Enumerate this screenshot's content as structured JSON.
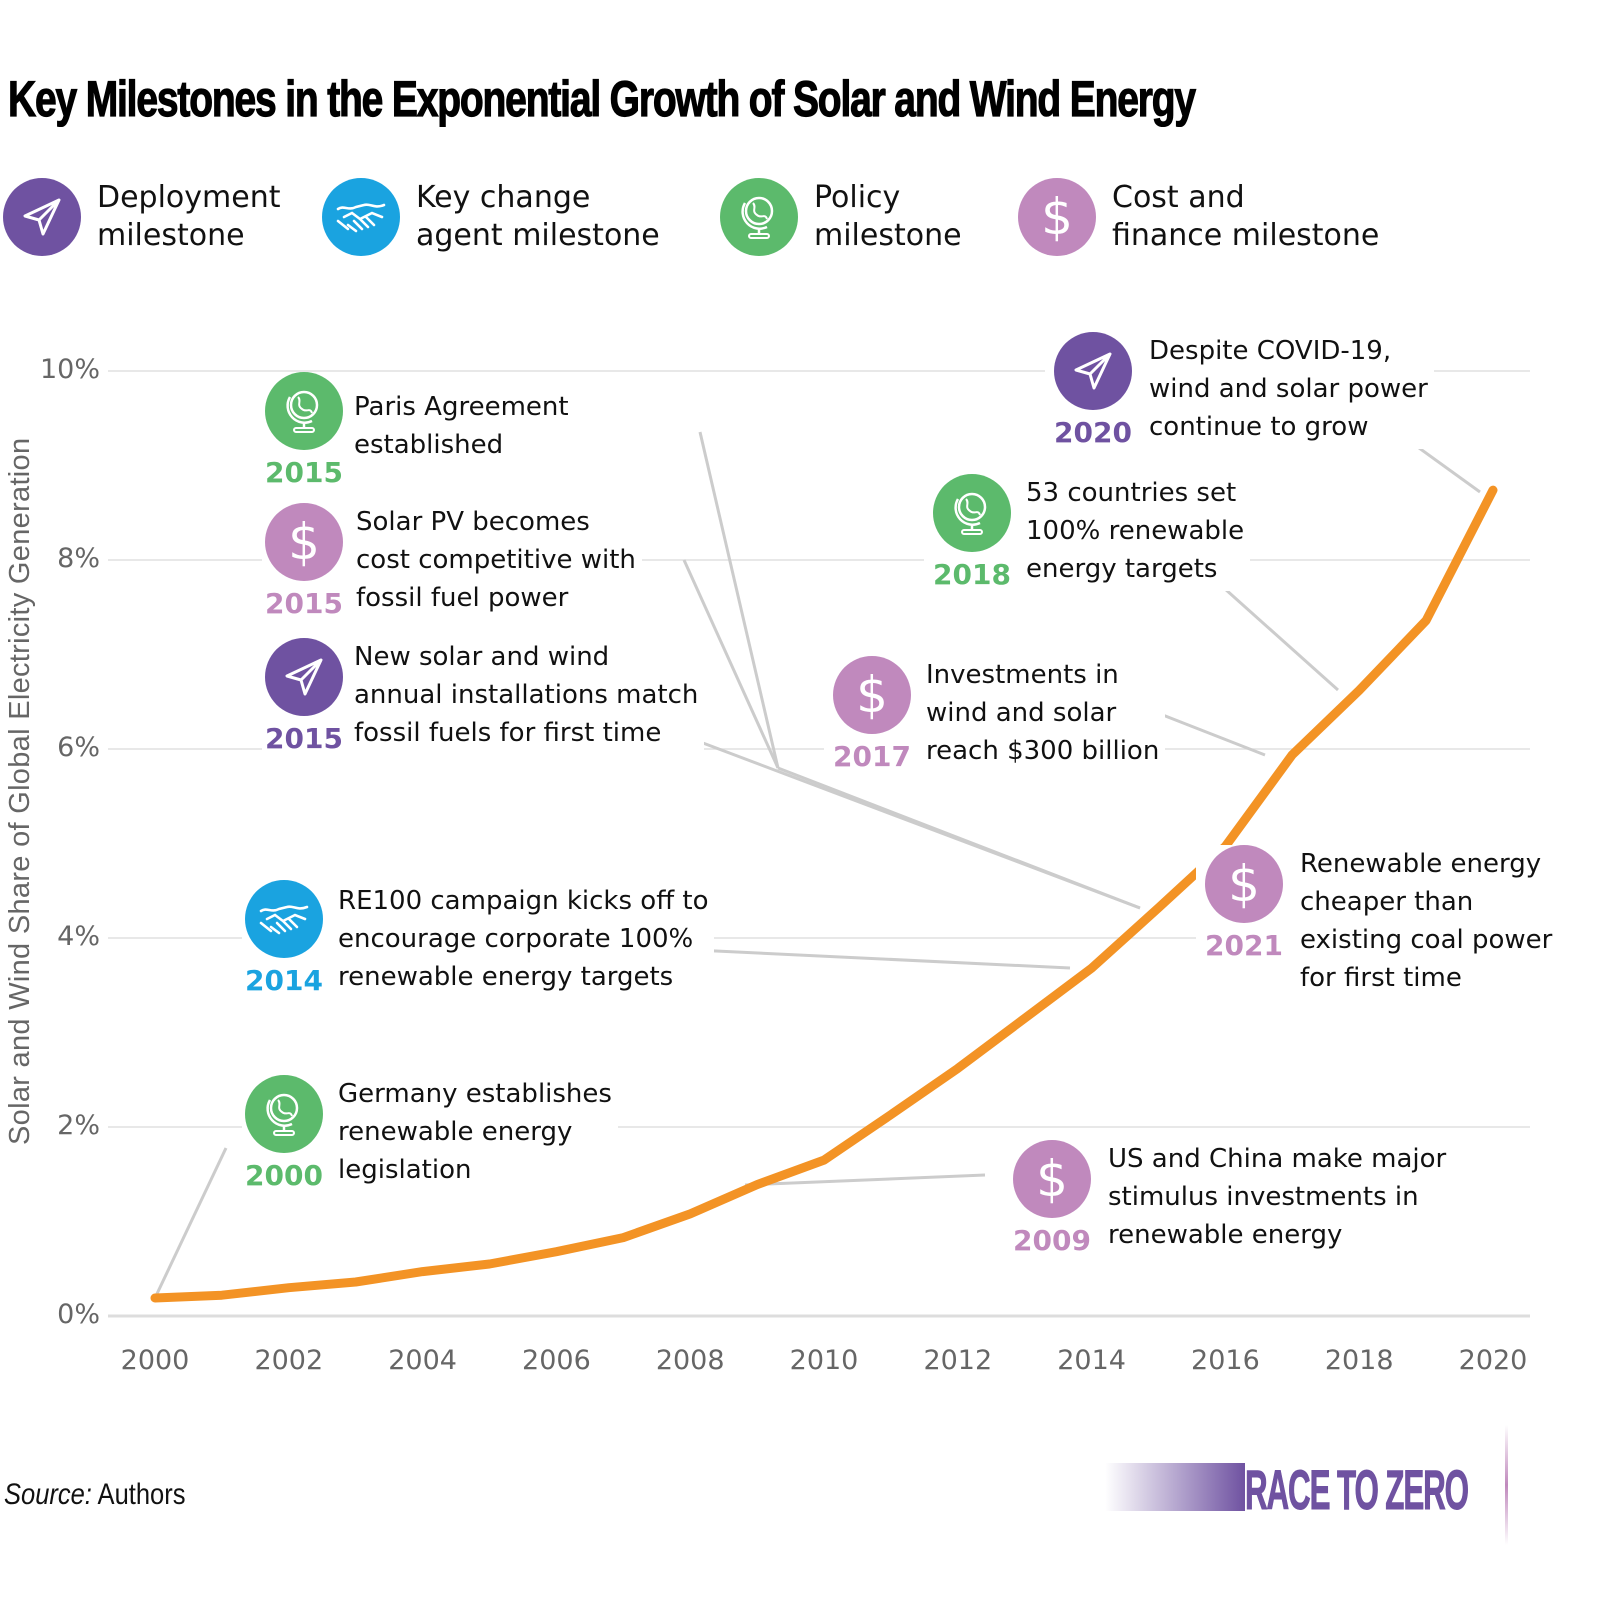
{
  "title": "Key Milestones in the Exponential Growth of Solar and Wind Energy",
  "colors": {
    "deployment": "#6f52a1",
    "key_change_agent": "#1aa3e0",
    "policy": "#5cba6c",
    "cost_finance": "#c089bd",
    "line": "#f39325",
    "grid": "#e0e0e0",
    "leader": "#cccccc",
    "axis_text": "#666666"
  },
  "legend": [
    {
      "type": "deployment",
      "icon": "paper-plane-icon",
      "line1": "Deployment",
      "line2": "milestone"
    },
    {
      "type": "key_change_agent",
      "icon": "handshake-icon",
      "line1": "Key change",
      "line2": "agent milestone"
    },
    {
      "type": "policy",
      "icon": "globe-icon",
      "line1": "Policy",
      "line2": "milestone"
    },
    {
      "type": "cost_finance",
      "icon": "dollar-icon",
      "line1": "Cost and",
      "line2": "finance milestone"
    }
  ],
  "annotations": [
    {
      "year": "2015",
      "type": "policy",
      "icon": "globe-icon",
      "text": "Paris Agreement\nestablished"
    },
    {
      "year": "2015",
      "type": "cost_finance",
      "icon": "dollar-icon",
      "text": "Solar PV becomes\ncost competitive with\nfossil fuel power"
    },
    {
      "year": "2015",
      "type": "deployment",
      "icon": "paper-plane-icon",
      "text": "New solar and wind\nannual installations match\nfossil fuels for first time"
    },
    {
      "year": "2014",
      "type": "key_change_agent",
      "icon": "handshake-icon",
      "text": "RE100 campaign kicks off to\nencourage corporate 100%\nrenewable energy targets"
    },
    {
      "year": "2000",
      "type": "policy",
      "icon": "globe-icon",
      "text": "Germany establishes\nrenewable energy\nlegislation"
    },
    {
      "year": "2020",
      "type": "deployment",
      "icon": "paper-plane-icon",
      "text": "Despite COVID-19,\nwind and solar power\ncontinue to grow"
    },
    {
      "year": "2018",
      "type": "policy",
      "icon": "globe-icon",
      "text": "53 countries set\n100% renewable\nenergy targets"
    },
    {
      "year": "2017",
      "type": "cost_finance",
      "icon": "dollar-icon",
      "text": "Investments in\nwind and solar\nreach $300 billion"
    },
    {
      "year": "2021",
      "type": "cost_finance",
      "icon": "dollar-icon",
      "text": "Renewable energy\ncheaper than\nexisting coal power\nfor first time"
    },
    {
      "year": "2009",
      "type": "cost_finance",
      "icon": "dollar-icon",
      "text": "US and China make major\nstimulus investments in\nrenewable energy"
    }
  ],
  "source_label": "Source:",
  "source_value": " Authors",
  "brand": "RACE TO ZERO",
  "chart_data": {
    "type": "line",
    "title": "Key Milestones in the Exponential Growth of Solar and Wind Energy",
    "xlabel": "",
    "ylabel": "Solar and Wind Share of Global Electricity Generation",
    "x": [
      2000,
      2001,
      2002,
      2003,
      2004,
      2005,
      2006,
      2007,
      2008,
      2009,
      2010,
      2011,
      2012,
      2013,
      2014,
      2015,
      2016,
      2017,
      2018,
      2019,
      2020
    ],
    "series": [
      {
        "name": "Solar and wind share (%)",
        "values": [
          0.19,
          0.22,
          0.3,
          0.36,
          0.47,
          0.55,
          0.68,
          0.83,
          1.08,
          1.39,
          1.65,
          2.13,
          2.62,
          3.15,
          3.68,
          4.32,
          4.97,
          5.94,
          6.62,
          7.36,
          8.74
        ]
      }
    ],
    "xlim": [
      2000,
      2020
    ],
    "ylim": [
      0,
      10
    ],
    "x_ticks": [
      "2000",
      "2002",
      "2004",
      "2006",
      "2008",
      "2010",
      "2012",
      "2014",
      "2016",
      "2018",
      "2020"
    ],
    "y_ticks": [
      "0%",
      "2%",
      "4%",
      "6%",
      "8%",
      "10%"
    ],
    "grid": true,
    "legend": "top"
  }
}
